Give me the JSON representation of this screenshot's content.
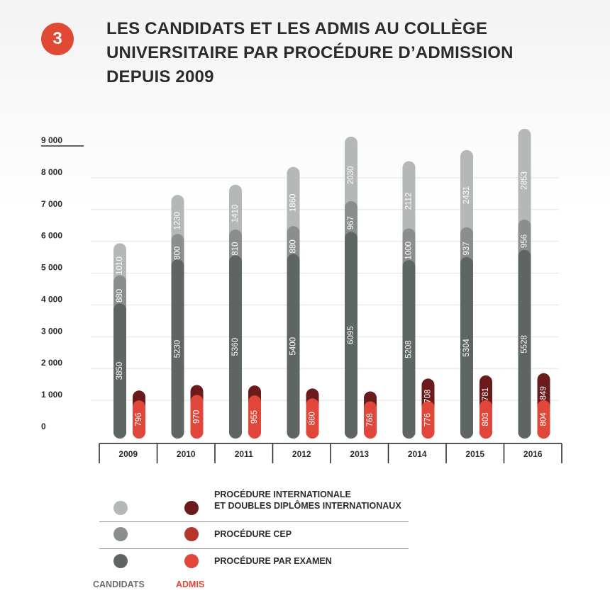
{
  "badge": "3",
  "title_lines": [
    "LES CANDIDATS ET LES ADMIS AU COLLÈGE",
    "UNIVERSITAIRE PAR PROCÉDURE D’ADMISSION",
    "DEPUIS 2009"
  ],
  "chart_data": {
    "type": "bar",
    "stacked": true,
    "title": "LES CANDIDATS ET LES ADMIS AU COLLÈGE UNIVERSITAIRE PAR PROCÉDURE D’ADMISSION DEPUIS 2009",
    "categories": [
      "2009",
      "2010",
      "2011",
      "2012",
      "2013",
      "2014",
      "2015",
      "2016"
    ],
    "y_ticks": [
      "9 000",
      "8 000",
      "7 000",
      "6 000",
      "5 000",
      "4 000",
      "3 000",
      "2 000",
      "1 000",
      "0"
    ],
    "ylim": [
      0,
      9000
    ],
    "candidats": {
      "examen": [
        3850,
        5230,
        5360,
        5400,
        6095,
        5208,
        5304,
        5528
      ],
      "cep": [
        880,
        800,
        810,
        880,
        967,
        1000,
        937,
        956
      ],
      "internationale": [
        1010,
        1230,
        1410,
        1860,
        2030,
        2112,
        2431,
        2853
      ]
    },
    "admis": {
      "examen": [
        796,
        970,
        955,
        860,
        768,
        776,
        803,
        804
      ],
      "cep": [
        0,
        0,
        0,
        0,
        0,
        0,
        0,
        0
      ],
      "internationale": [
        0,
        0,
        0,
        0,
        0,
        708,
        781,
        849
      ]
    },
    "colors": {
      "cand_examen": "#5f6563",
      "cand_cep": "#8a8f8d",
      "cand_internationale": "#b4b8b6",
      "adm_examen": "#e0473a",
      "adm_cep": "#b3372c",
      "adm_internationale": "#6b1b1c"
    }
  },
  "legend": {
    "items": [
      {
        "label_lines": [
          "PROCÉDURE INTERNATIONALE",
          "ET DOUBLES DIPLÔMES INTERNATIONAUX"
        ],
        "cand_color": "#b4b8b6",
        "adm_color": "#6b1b1c"
      },
      {
        "label_lines": [
          "PROCÉDURE CEP"
        ],
        "cand_color": "#8a8f8d",
        "adm_color": "#b3372c"
      },
      {
        "label_lines": [
          "PROCÉDURE PAR EXAMEN"
        ],
        "cand_color": "#5f6563",
        "adm_color": "#e0473a"
      }
    ],
    "candidats_label": "CANDIDATS",
    "admis_label": "ADMIS",
    "candidats_color": "#6a6f6d",
    "admis_color": "#e0473a"
  }
}
